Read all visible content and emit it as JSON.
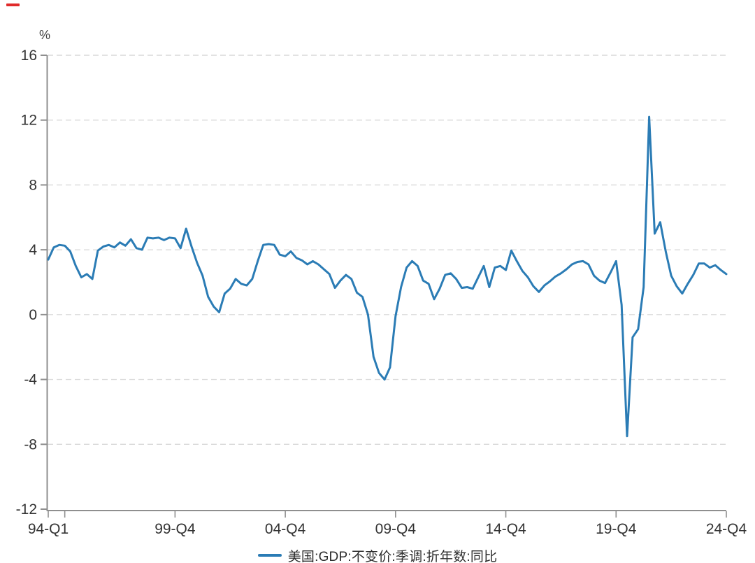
{
  "decorations": {
    "corner_dash_color": "#e02b2b"
  },
  "unit_label": "%",
  "legend": {
    "position": "bottom-center",
    "items": [
      {
        "label": "美国:GDP:不变价:季调:折年数:同比",
        "color": "#2b7cb5"
      }
    ]
  },
  "chart_data": {
    "type": "line",
    "title": "",
    "ylabel": "%",
    "x_start": "94-Q1",
    "x_end": "24-Q4",
    "frequency": "quarterly",
    "ylim": [
      -12,
      16
    ],
    "y_ticks": [
      16,
      12,
      8,
      4,
      0,
      -4,
      -8,
      -12
    ],
    "grid": "horizontal-dashed",
    "legend_position": "bottom-center",
    "x_ticks": [
      {
        "q": 0,
        "label": "94-Q1"
      },
      {
        "q": 3,
        "label": ""
      },
      {
        "q": 23,
        "label": "99-Q4"
      },
      {
        "q": 43,
        "label": "04-Q4"
      },
      {
        "q": 63,
        "label": "09-Q4"
      },
      {
        "q": 83,
        "label": "14-Q4"
      },
      {
        "q": 103,
        "label": "19-Q4"
      },
      {
        "q": 123,
        "label": "24-Q4"
      }
    ],
    "series": [
      {
        "name": "美国:GDP:不变价:季调:折年数:同比",
        "color": "#2b7cb5",
        "values": [
          3.4,
          4.15,
          4.3,
          4.25,
          3.9,
          3.0,
          2.3,
          2.5,
          2.2,
          3.95,
          4.2,
          4.3,
          4.15,
          4.45,
          4.25,
          4.65,
          4.1,
          4.0,
          4.75,
          4.7,
          4.75,
          4.6,
          4.75,
          4.7,
          4.1,
          5.3,
          4.2,
          3.2,
          2.4,
          1.1,
          0.5,
          0.15,
          1.3,
          1.6,
          2.2,
          1.9,
          1.8,
          2.2,
          3.3,
          4.3,
          4.35,
          4.3,
          3.7,
          3.6,
          3.9,
          3.5,
          3.35,
          3.1,
          3.3,
          3.1,
          2.8,
          2.5,
          1.65,
          2.1,
          2.45,
          2.2,
          1.35,
          1.1,
          0.0,
          -2.6,
          -3.6,
          -4.0,
          -3.25,
          -0.1,
          1.7,
          2.9,
          3.3,
          3.0,
          2.1,
          1.9,
          0.95,
          1.6,
          2.45,
          2.55,
          2.2,
          1.65,
          1.7,
          1.6,
          2.3,
          3.0,
          1.7,
          2.9,
          3.0,
          2.75,
          3.95,
          3.3,
          2.7,
          2.3,
          1.75,
          1.4,
          1.8,
          2.05,
          2.35,
          2.55,
          2.8,
          3.1,
          3.25,
          3.3,
          3.1,
          2.4,
          2.1,
          1.95,
          2.6,
          3.3,
          0.6,
          -7.5,
          -1.4,
          -0.9,
          1.7,
          12.2,
          5.0,
          5.7,
          3.9,
          2.4,
          1.75,
          1.3,
          1.9,
          2.45,
          3.15,
          3.15,
          2.9,
          3.05,
          2.75,
          2.5
        ]
      }
    ],
    "style": {
      "axis_color": "#8f8f8f",
      "grid_color": "#d9d9d9",
      "tick_label_color": "#333333"
    }
  }
}
